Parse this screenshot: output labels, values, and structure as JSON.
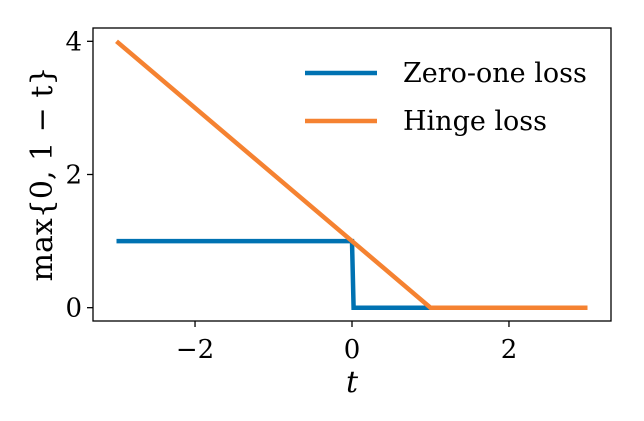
{
  "chart_data": {
    "type": "line",
    "xlabel": "t",
    "ylabel": "max{0, 1 − t}",
    "xlim": [
      -3.3,
      3.3
    ],
    "ylim": [
      -0.2,
      4.2
    ],
    "xticks": [
      -2,
      0,
      2
    ],
    "xtick_labels": [
      "−2",
      "0",
      "2"
    ],
    "yticks": [
      0,
      2,
      4
    ],
    "ytick_labels": [
      "0",
      "2",
      "4"
    ],
    "grid": false,
    "legend_position": "top-right",
    "series": [
      {
        "name": "Zero-one loss",
        "color": "#0072b2",
        "x": [
          -3,
          0,
          0.02,
          3
        ],
        "y": [
          1,
          1,
          0,
          0
        ]
      },
      {
        "name": "Hinge loss",
        "color": "#f58231",
        "x": [
          -3,
          1,
          3
        ],
        "y": [
          4,
          0,
          0
        ]
      }
    ]
  }
}
